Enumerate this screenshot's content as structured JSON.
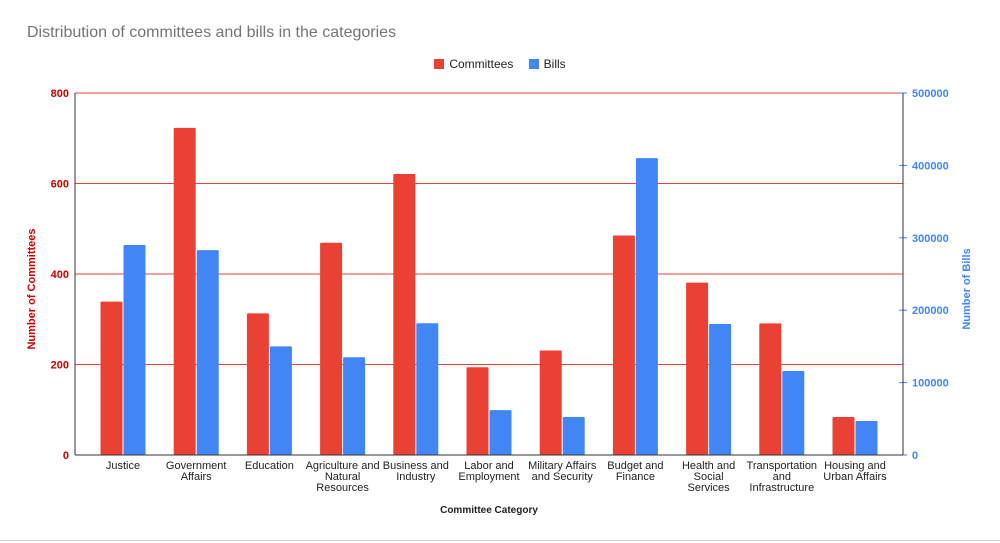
{
  "chart_data": {
    "type": "bar",
    "title": "Distribution of committees and bills in the categories",
    "xlabel": "Committee Category",
    "ylabel": "Number of Committees",
    "y2label": "Number of Bills",
    "categories": [
      [
        "Justice"
      ],
      [
        "Government",
        "Affairs"
      ],
      [
        "Education"
      ],
      [
        "Agriculture and",
        "Natural",
        "Resources"
      ],
      [
        "Business and",
        "Industry"
      ],
      [
        "Labor and",
        "Employment"
      ],
      [
        "Military Affairs",
        "and Security"
      ],
      [
        "Budget and",
        "Finance"
      ],
      [
        "Health and",
        "Social",
        "Services"
      ],
      [
        "Transportation",
        "and",
        "Infrastructure"
      ],
      [
        "Housing and",
        "Urban Affairs"
      ]
    ],
    "series": [
      {
        "name": "Committees",
        "axis": "left",
        "color": "#e94235",
        "values": [
          339,
          723,
          313,
          469,
          621,
          194,
          231,
          485,
          381,
          291,
          84
        ]
      },
      {
        "name": "Bills",
        "axis": "right",
        "color": "#4285f4",
        "values": [
          290000,
          283000,
          150000,
          135000,
          182000,
          62000,
          52500,
          410000,
          181000,
          116000,
          47000
        ]
      }
    ],
    "ylim": [
      0,
      800
    ],
    "yticks": [
      "0",
      "200",
      "400",
      "600",
      "800"
    ],
    "y2lim": [
      0,
      500000
    ],
    "y2ticks": [
      "0",
      "100000",
      "200000",
      "300000",
      "400000",
      "500000"
    ],
    "grid": true,
    "grid_color": "#e94235",
    "legend": "top"
  }
}
